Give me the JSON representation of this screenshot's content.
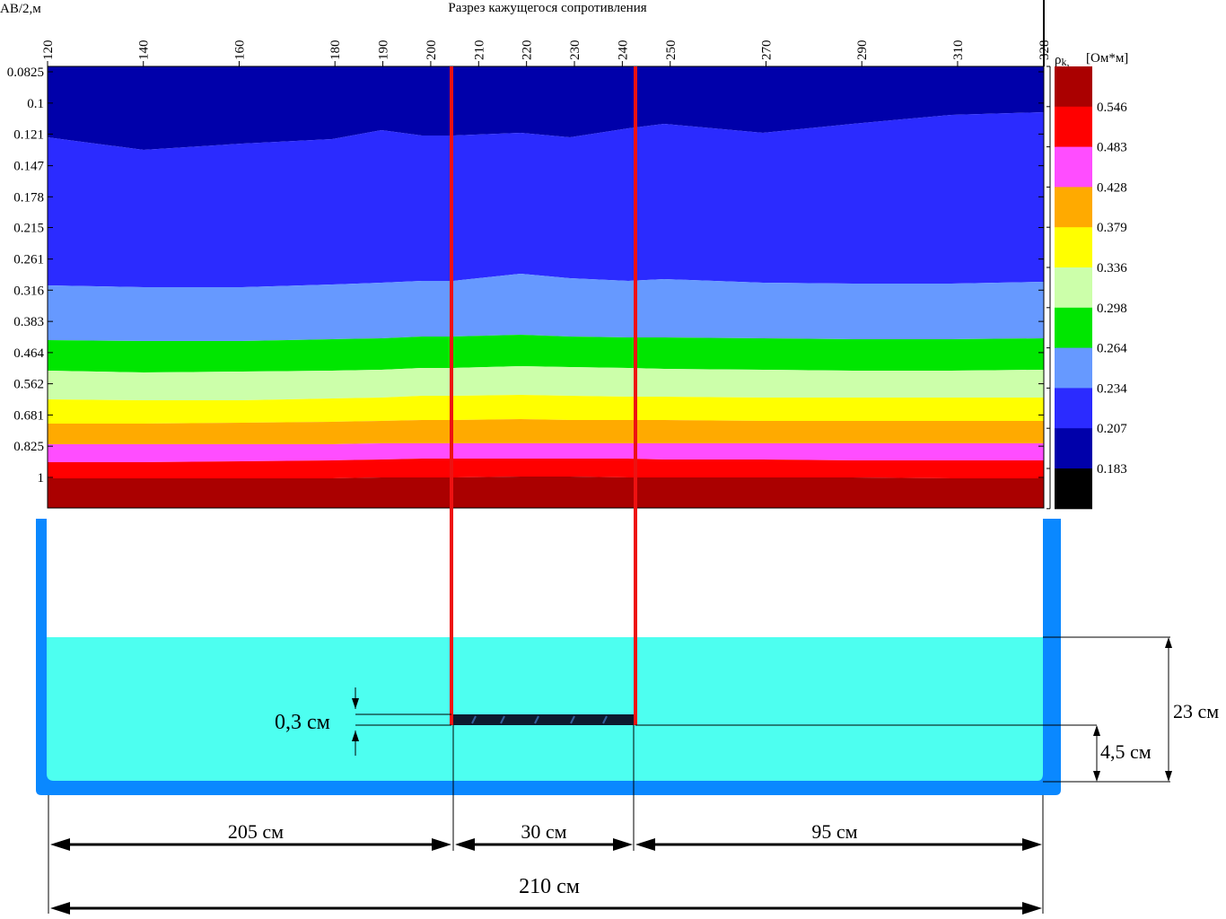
{
  "header": {
    "title": "Разрез кажущегося сопротивления",
    "y_axis_label": "AB/2,м"
  },
  "colorbar": {
    "title_symbol": "ρ",
    "title_sub": "k,",
    "title_unit": "[Ом*м]",
    "ticks": [
      "0.546",
      "0.483",
      "0.428",
      "0.379",
      "0.336",
      "0.298",
      "0.264",
      "0.234",
      "0.207",
      "0.183"
    ],
    "colors": [
      "#aa0000",
      "#ff0000",
      "#ff4dff",
      "#ffaa00",
      "#ffff00",
      "#ccffaa",
      "#00e600",
      "#6699ff",
      "#2b2bff",
      "#0000aa",
      "#000000"
    ]
  },
  "chart_data": {
    "type": "heatmap",
    "title": "Разрез кажущегося сопротивления",
    "xlabel": "",
    "ylabel": "AB/2,м",
    "xlim": [
      120,
      328
    ],
    "x_ticks": [
      "120",
      "140",
      "160",
      "180",
      "190",
      "200",
      "210",
      "220",
      "230",
      "240",
      "250",
      "270",
      "290",
      "310",
      "328"
    ],
    "x_tick_values": [
      120,
      140,
      160,
      180,
      190,
      200,
      210,
      220,
      230,
      240,
      250,
      270,
      290,
      310,
      328
    ],
    "y_ticks": [
      "0.0825",
      "0.1",
      "0.121",
      "0.147",
      "0.178",
      "0.215",
      "0.261",
      "0.316",
      "0.383",
      "0.464",
      "0.562",
      "0.681",
      "0.825",
      "1"
    ],
    "y_scale": "log",
    "y_inverted": true,
    "markers_x": [
      205,
      243
    ],
    "layer_colors": [
      "#0000aa",
      "#2b2bff",
      "#6699ff",
      "#00e600",
      "#ccffaa",
      "#ffff00",
      "#ffaa00",
      "#ff4dff",
      "#ff0000",
      "#aa0000"
    ]
  },
  "model": {
    "labels": {
      "thickness": "0,3 см",
      "water_depth": "23 см",
      "object_depth": "4,5 см",
      "left_dist": "205 см",
      "object_len": "30 см",
      "right_dist": "95 см",
      "total_len": "210 см"
    },
    "colors": {
      "tank": "#0a88ff",
      "water": "#4dfff0",
      "object": "#0d1a2e",
      "marker": "#ee1111"
    }
  }
}
